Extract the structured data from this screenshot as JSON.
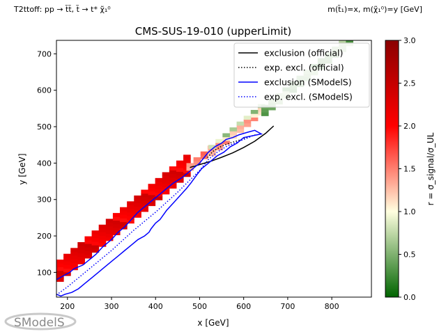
{
  "header": {
    "left": "T2ttoff: pp → t̃t̃, t̃ → t* χ̃₁⁰",
    "right": "m(t̃₁)=x, m(χ̃₁⁰)=y [GeV]"
  },
  "chart_data": {
    "type": "heatmap",
    "title": "CMS-SUS-19-010 (upperLimit)",
    "xlabel": "x [GeV]",
    "ylabel": "y [GeV]",
    "colorbar_label": "r = σ_signal/σ_UL",
    "xlim": [
      175,
      890
    ],
    "ylim": [
      32,
      737
    ],
    "clim": [
      0,
      3
    ],
    "xticks": [
      200,
      300,
      400,
      500,
      600,
      700,
      800
    ],
    "yticks": [
      100,
      200,
      300,
      400,
      500,
      600,
      700
    ],
    "cticks": [
      "0.0",
      "0.5",
      "1.0",
      "1.5",
      "2.0",
      "2.5",
      "3.0"
    ],
    "colormap": [
      {
        "v": 0.0,
        "color": "#006400"
      },
      {
        "v": 1.0,
        "color": "#ffffe0"
      },
      {
        "v": 2.0,
        "color": "#ff0000"
      },
      {
        "v": 3.0,
        "color": "#8b0000"
      }
    ],
    "cells": {
      "cell_size": [
        16,
        10
      ],
      "bands": [
        {
          "x_from": 175,
          "x_to": 470,
          "dy_from": -100,
          "dy_to": -45,
          "r": 2.2
        },
        {
          "x_from": 470,
          "x_to": 520,
          "dy_from": -90,
          "dy_to": -70,
          "r": 1.4
        },
        {
          "x_from": 520,
          "x_to": 640,
          "dy_from": -100,
          "dy_to": -80,
          "r": 1.3
        },
        {
          "x_from": 520,
          "x_to": 640,
          "dy_from": -80,
          "dy_to": -70,
          "r": 0.7
        },
        {
          "x_from": 640,
          "x_to": 890,
          "dy_from": -110,
          "dy_to": -80,
          "r": 0.5
        }
      ]
    },
    "series": [
      {
        "name": "exclusion (official)",
        "color": "#000000",
        "dash": "solid",
        "x": [
          478,
          500,
          525,
          550,
          575,
          600,
          625,
          650,
          668
        ],
        "y": [
          388,
          396,
          405,
          416,
          428,
          443,
          460,
          482,
          502
        ]
      },
      {
        "name": "exp. excl. (official)",
        "color": "#000000",
        "dash": "dotted",
        "x": [
          518,
          530,
          548,
          568,
          588,
          608,
          628
        ],
        "y": [
          415,
          432,
          445,
          455,
          462,
          470,
          478
        ]
      },
      {
        "name": "exclusion (SModelS)",
        "color": "#0000ff",
        "dash": "solid",
        "x": [
          175,
          190,
          205,
          215,
          235,
          255,
          265,
          280,
          300,
          315,
          330,
          345,
          360,
          375,
          390,
          400,
          410,
          425,
          440,
          460,
          480,
          500,
          510,
          520,
          535,
          550,
          560,
          575,
          590,
          610,
          625,
          640,
          600,
          585,
          570,
          555,
          540,
          520,
          505,
          495,
          480,
          470,
          455,
          440,
          425,
          410,
          400,
          390,
          385,
          375,
          360,
          345,
          330,
          315,
          300,
          285,
          270,
          255,
          240,
          225,
          210,
          195,
          185,
          175
        ],
        "y": [
          80,
          90,
          100,
          110,
          120,
          140,
          150,
          170,
          190,
          210,
          225,
          245,
          265,
          280,
          295,
          305,
          315,
          330,
          345,
          360,
          380,
          400,
          415,
          430,
          445,
          455,
          465,
          470,
          478,
          485,
          490,
          480,
          470,
          455,
          445,
          430,
          420,
          400,
          385,
          370,
          345,
          330,
          310,
          290,
          270,
          245,
          235,
          220,
          210,
          200,
          190,
          175,
          160,
          145,
          130,
          115,
          100,
          85,
          70,
          55,
          45,
          40,
          35,
          40
        ]
      },
      {
        "name": "exp. excl. (SModelS)",
        "color": "#0000ff",
        "dash": "dotted",
        "x": [
          175,
          200,
          250,
          300,
          350,
          400,
          450,
          500,
          520,
          540,
          560,
          580,
          600,
          615
        ],
        "y": [
          38,
          60,
          110,
          160,
          215,
          265,
          320,
          380,
          410,
          430,
          445,
          455,
          465,
          472
        ]
      }
    ],
    "legend": {
      "placement": "top-right"
    }
  },
  "logo": {
    "text": "SModelS"
  }
}
